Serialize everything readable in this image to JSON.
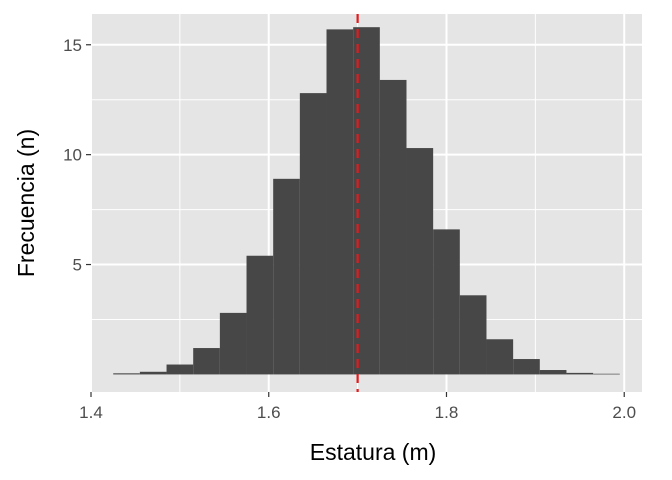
{
  "colors": {
    "panel_background": "#e5e5e5",
    "grid": "#ffffff",
    "bar_fill": "#474747",
    "reference_line": "#e41a1c",
    "tick_text": "#4d4d4d",
    "tick_mark": "#333333"
  },
  "chart_data": {
    "type": "bar",
    "subtype": "histogram",
    "title": "",
    "xlabel": "Estatura (m)",
    "ylabel": "Frecuencia (n)",
    "xlim": [
      1.4,
      2.02
    ],
    "ylim": [
      -0.8,
      16.4
    ],
    "xticks": [
      1.4,
      1.6,
      1.8,
      2.0
    ],
    "xtick_labels": [
      "1.4",
      "1.6",
      "1.8",
      "2.0"
    ],
    "yticks": [
      5,
      10,
      15
    ],
    "ytick_labels": [
      "5",
      "10",
      "15"
    ],
    "x_minor_gridlines": [
      1.5,
      1.7,
      1.9
    ],
    "y_minor_gridlines": [
      2.5,
      7.5,
      12.5
    ],
    "grid": true,
    "legend": "none",
    "bin_width": 0.03,
    "bin_edges": [
      1.425,
      1.455,
      1.485,
      1.515,
      1.545,
      1.575,
      1.605,
      1.635,
      1.665,
      1.695,
      1.725,
      1.755,
      1.785,
      1.815,
      1.845,
      1.875,
      1.905,
      1.935,
      1.965,
      1.995
    ],
    "values": [
      0.05,
      0.12,
      0.45,
      1.2,
      2.8,
      5.4,
      8.9,
      12.8,
      15.7,
      15.8,
      13.4,
      10.3,
      6.6,
      3.6,
      1.6,
      0.7,
      0.2,
      0.07,
      0.03
    ],
    "reference_line": {
      "x": 1.7,
      "style": "dashed",
      "color": "#e41a1c"
    }
  }
}
